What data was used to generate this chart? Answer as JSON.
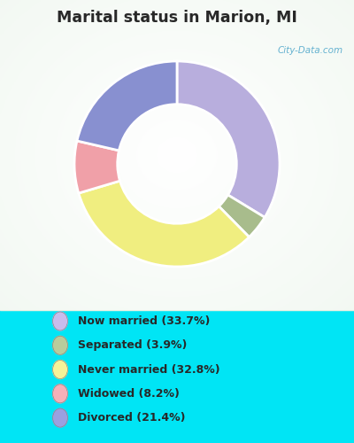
{
  "title": "Marital status in Marion, MI",
  "slices": [
    33.7,
    3.9,
    32.8,
    8.2,
    21.4
  ],
  "labels": [
    "Now married (33.7%)",
    "Separated (3.9%)",
    "Never married (32.8%)",
    "Widowed (8.2%)",
    "Divorced (21.4%)"
  ],
  "colors": [
    "#b8aedd",
    "#a8bc8c",
    "#f0ee80",
    "#f0a0a8",
    "#8890d0"
  ],
  "legend_dot_colors": [
    "#c8bcec",
    "#b8cc9c",
    "#f5f398",
    "#f5b0b8",
    "#9aa0e0"
  ],
  "bg_color_top": "#e2f0e2",
  "bg_color_bottom": "#00e5f5",
  "title_color": "#282828",
  "figsize": [
    4.0,
    5.0
  ],
  "dpi": 100,
  "startangle": 90,
  "watermark": "City-Data.com"
}
